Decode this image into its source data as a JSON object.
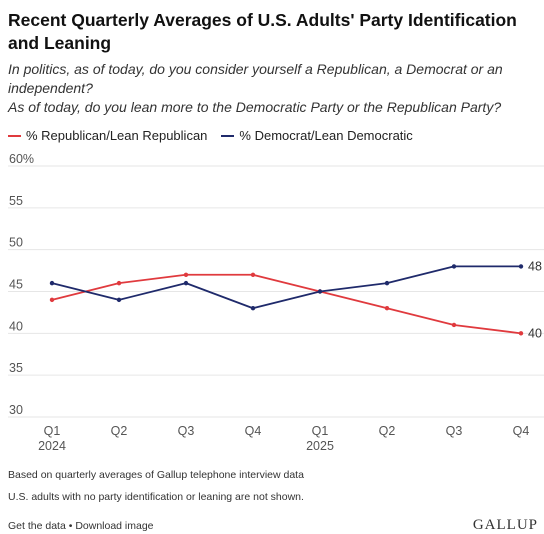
{
  "header": {
    "title": "Recent Quarterly Averages of U.S. Adults' Party Identification and Leaning",
    "question_1": "In politics, as of today, do you consider yourself a Republican, a Democrat or an independent?",
    "question_2": "As of today, do you lean more to the Democratic Party or the Republican Party?"
  },
  "legend": {
    "rep_label": "% Republican/Lean Republican",
    "dem_label": "% Democrat/Lean Democratic"
  },
  "colors": {
    "republican": "#e03a3e",
    "democrat": "#1f2a6b",
    "grid": "#e6e6e6",
    "axis_text": "#555555"
  },
  "chart_data": {
    "type": "line",
    "title": "Recent Quarterly Averages of U.S. Adults' Party Identification and Leaning",
    "categories": [
      "Q1",
      "Q2",
      "Q3",
      "Q4",
      "Q1",
      "Q2",
      "Q3",
      "Q4"
    ],
    "year_labels": [
      "2024",
      "",
      "",
      "",
      "2025",
      "",
      "",
      ""
    ],
    "series": [
      {
        "name": "% Republican/Lean Republican",
        "values": [
          44,
          46,
          47,
          47,
          45,
          43,
          41,
          40
        ]
      },
      {
        "name": "% Democrat/Lean Democratic",
        "values": [
          46,
          44,
          46,
          43,
          45,
          46,
          48,
          48
        ]
      }
    ],
    "yticks": [
      "60%",
      "55",
      "50",
      "45",
      "40",
      "35",
      "30"
    ],
    "ylim": [
      30,
      60
    ],
    "grid": true,
    "legend_position": "top-left",
    "end_labels": [
      "40",
      "48"
    ]
  },
  "footnotes": {
    "note_1": "Based on quarterly averages of Gallup telephone interview data",
    "note_2": "U.S. adults with no party identification or leaning are not shown."
  },
  "footer": {
    "get_data": "Get the data",
    "separator": " • ",
    "download": "Download image",
    "logo": "GALLUP"
  }
}
